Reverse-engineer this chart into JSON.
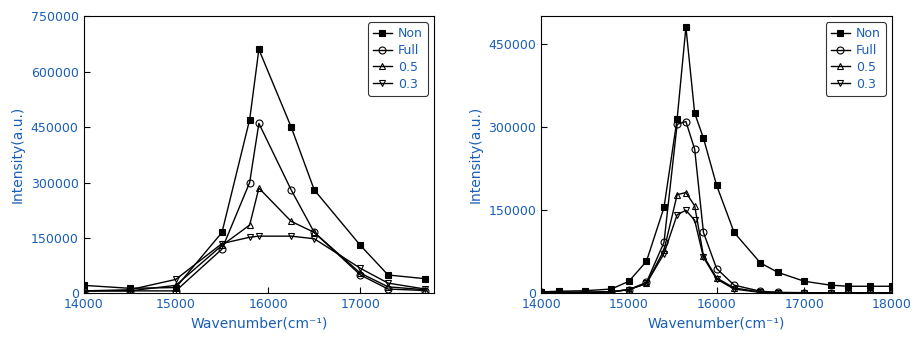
{
  "left": {
    "xlabel": "Wavenumber(cm⁻¹)",
    "ylabel": "Intensity(a.u.)",
    "xlim": [
      14000,
      17800
    ],
    "ylim": [
      0,
      750000
    ],
    "yticks": [
      0,
      150000,
      300000,
      450000,
      600000,
      750000
    ],
    "xticks": [
      14000,
      15000,
      16000,
      17000
    ],
    "series": {
      "Non": {
        "x": [
          14000,
          14500,
          15000,
          15500,
          15800,
          15900,
          16250,
          16500,
          17000,
          17300,
          17700
        ],
        "y": [
          22000,
          14000,
          16000,
          165000,
          470000,
          660000,
          450000,
          280000,
          130000,
          50000,
          40000
        ]
      },
      "Full": {
        "x": [
          14000,
          14500,
          15000,
          15500,
          15800,
          15900,
          16250,
          16500,
          17000,
          17300,
          17700
        ],
        "y": [
          7000,
          7000,
          7000,
          120000,
          300000,
          460000,
          280000,
          165000,
          50000,
          12000,
          8000
        ]
      },
      "0.5": {
        "x": [
          14000,
          14500,
          15000,
          15500,
          15800,
          15900,
          16250,
          16500,
          17000,
          17300,
          17700
        ],
        "y": [
          7000,
          7000,
          22000,
          130000,
          185000,
          285000,
          195000,
          165000,
          55000,
          18000,
          10000
        ]
      },
      "0.3": {
        "x": [
          14000,
          14500,
          15000,
          15500,
          15800,
          15900,
          16250,
          16500,
          17000,
          17300,
          17700
        ],
        "y": [
          7000,
          10000,
          38000,
          135000,
          152000,
          155000,
          155000,
          148000,
          68000,
          28000,
          12000
        ]
      }
    }
  },
  "right": {
    "xlabel": "Wavenumber(cm⁻¹)",
    "ylabel": "Intensity(a.u.)",
    "xlim": [
      14000,
      18000
    ],
    "ylim": [
      0,
      500000
    ],
    "yticks": [
      0,
      150000,
      300000,
      450000
    ],
    "xticks": [
      14000,
      15000,
      16000,
      17000,
      18000
    ],
    "series": {
      "Non": {
        "x": [
          14000,
          14200,
          14500,
          14800,
          15000,
          15200,
          15400,
          15550,
          15650,
          15750,
          15850,
          16000,
          16200,
          16500,
          16700,
          17000,
          17300,
          17500,
          17750,
          18000
        ],
        "y": [
          3000,
          4000,
          5000,
          8000,
          22000,
          58000,
          155000,
          315000,
          480000,
          325000,
          280000,
          195000,
          110000,
          55000,
          38000,
          22000,
          15000,
          13000,
          13000,
          13000
        ]
      },
      "Full": {
        "x": [
          14000,
          14200,
          14500,
          14800,
          15000,
          15200,
          15400,
          15550,
          15650,
          15750,
          15850,
          16000,
          16200,
          16500,
          16700,
          17000,
          17300,
          17500,
          17750,
          18000
        ],
        "y": [
          2000,
          2000,
          2000,
          3000,
          7000,
          20000,
          92000,
          305000,
          310000,
          260000,
          110000,
          45000,
          15000,
          4000,
          2000,
          1500,
          1000,
          1000,
          1000,
          1000
        ]
      },
      "0.5": {
        "x": [
          14000,
          14200,
          14500,
          14800,
          15000,
          15200,
          15400,
          15550,
          15650,
          15750,
          15850,
          16000,
          16200,
          16500,
          16700,
          17000,
          17300,
          17500,
          17750,
          18000
        ],
        "y": [
          2000,
          2000,
          2000,
          3000,
          7000,
          18000,
          78000,
          178000,
          182000,
          158000,
          68000,
          28000,
          10000,
          2500,
          1500,
          1000,
          1000,
          1000,
          1000,
          1000
        ]
      },
      "0.3": {
        "x": [
          14000,
          14200,
          14500,
          14800,
          15000,
          15200,
          15400,
          15550,
          15650,
          15750,
          15850,
          16000,
          16200,
          16500,
          16700,
          17000,
          17300,
          17500,
          17750,
          18000
        ],
        "y": [
          2000,
          2000,
          2000,
          3000,
          7000,
          18000,
          72000,
          142000,
          150000,
          132000,
          65000,
          26000,
          8000,
          2000,
          1500,
          1000,
          1000,
          1000,
          1000,
          1000
        ]
      }
    }
  },
  "legend_labels": [
    "Non",
    "Full",
    "0.5",
    "0.3"
  ],
  "marker_styles": {
    "Non": "s",
    "Full": "o",
    "0.5": "^",
    "0.3": "v"
  },
  "fill_styles": {
    "Non": "full",
    "Full": "none",
    "0.5": "none",
    "0.3": "none"
  },
  "spine_color": "black",
  "axis_label_color": "#1a5eb8",
  "tick_label_color": "#1a5eb8",
  "line_color": "black",
  "bg_color": "white"
}
